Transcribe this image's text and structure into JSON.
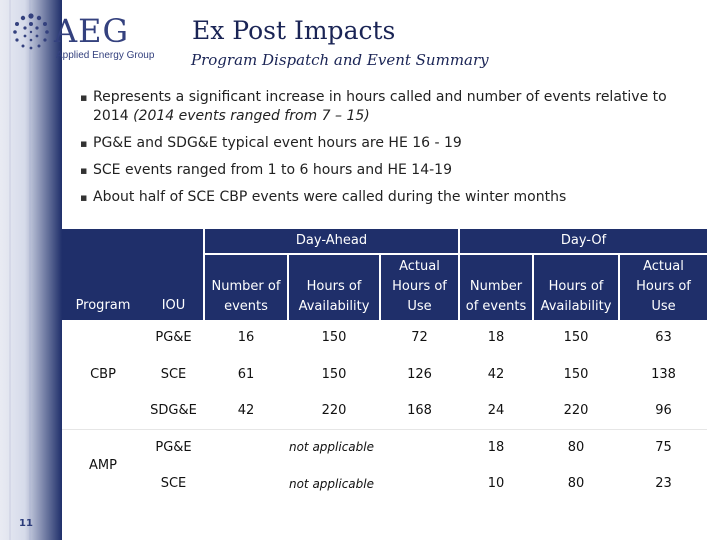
{
  "logo": {
    "name": "AEG",
    "subtitle": "Applied Energy Group"
  },
  "header": {
    "title": "Ex Post Impacts",
    "subtitle": "Program Dispatch and Event Summary"
  },
  "bullets": [
    {
      "text": "Represents a significant increase in hours called and number of events relative to 2014 ",
      "italic": "(2014 events ranged from 7 – 15)"
    },
    {
      "text": "PG&E and SDG&E typical event hours are HE 16 - 19"
    },
    {
      "text": "SCE events ranged from 1 to 6 hours and HE 14-19"
    },
    {
      "text": "About half of SCE CBP events were called during the winter months"
    }
  ],
  "table": {
    "group_headers": {
      "day_ahead": "Day-Ahead",
      "day_of": "Day-Of"
    },
    "columns": {
      "program": "Program",
      "iou": "IOU",
      "da_events": [
        "Number of",
        "events"
      ],
      "da_hours_avail": [
        "Hours of",
        "Availability"
      ],
      "da_actual": [
        "Actual",
        "Hours of",
        "Use"
      ],
      "do_events": [
        "Number",
        "of events"
      ],
      "do_hours_avail": [
        "Hours of",
        "Availability"
      ],
      "do_actual": [
        "Actual",
        "Hours of",
        "Use"
      ]
    },
    "programs": [
      "CBP",
      "AMP"
    ],
    "rows": [
      {
        "iou": "PG&E",
        "da_events": "16",
        "da_hours": "150",
        "da_actual": "72",
        "do_events": "18",
        "do_hours": "150",
        "do_actual": "63"
      },
      {
        "iou": "SCE",
        "da_events": "61",
        "da_hours": "150",
        "da_actual": "126",
        "do_events": "42",
        "do_hours": "150",
        "do_actual": "138"
      },
      {
        "iou": "SDG&E",
        "da_events": "42",
        "da_hours": "220",
        "da_actual": "168",
        "do_events": "24",
        "do_hours": "220",
        "do_actual": "96"
      },
      {
        "iou": "PG&E",
        "da_note": "not applicable",
        "do_events": "18",
        "do_hours": "80",
        "do_actual": "75"
      },
      {
        "iou": "SCE",
        "da_note": "not applicable",
        "do_events": "10",
        "do_hours": "80",
        "do_actual": "23"
      }
    ]
  },
  "footer": {
    "page_number": "11"
  },
  "colors": {
    "navy": "#1f2f6a",
    "logo_blue": "#34417e"
  }
}
